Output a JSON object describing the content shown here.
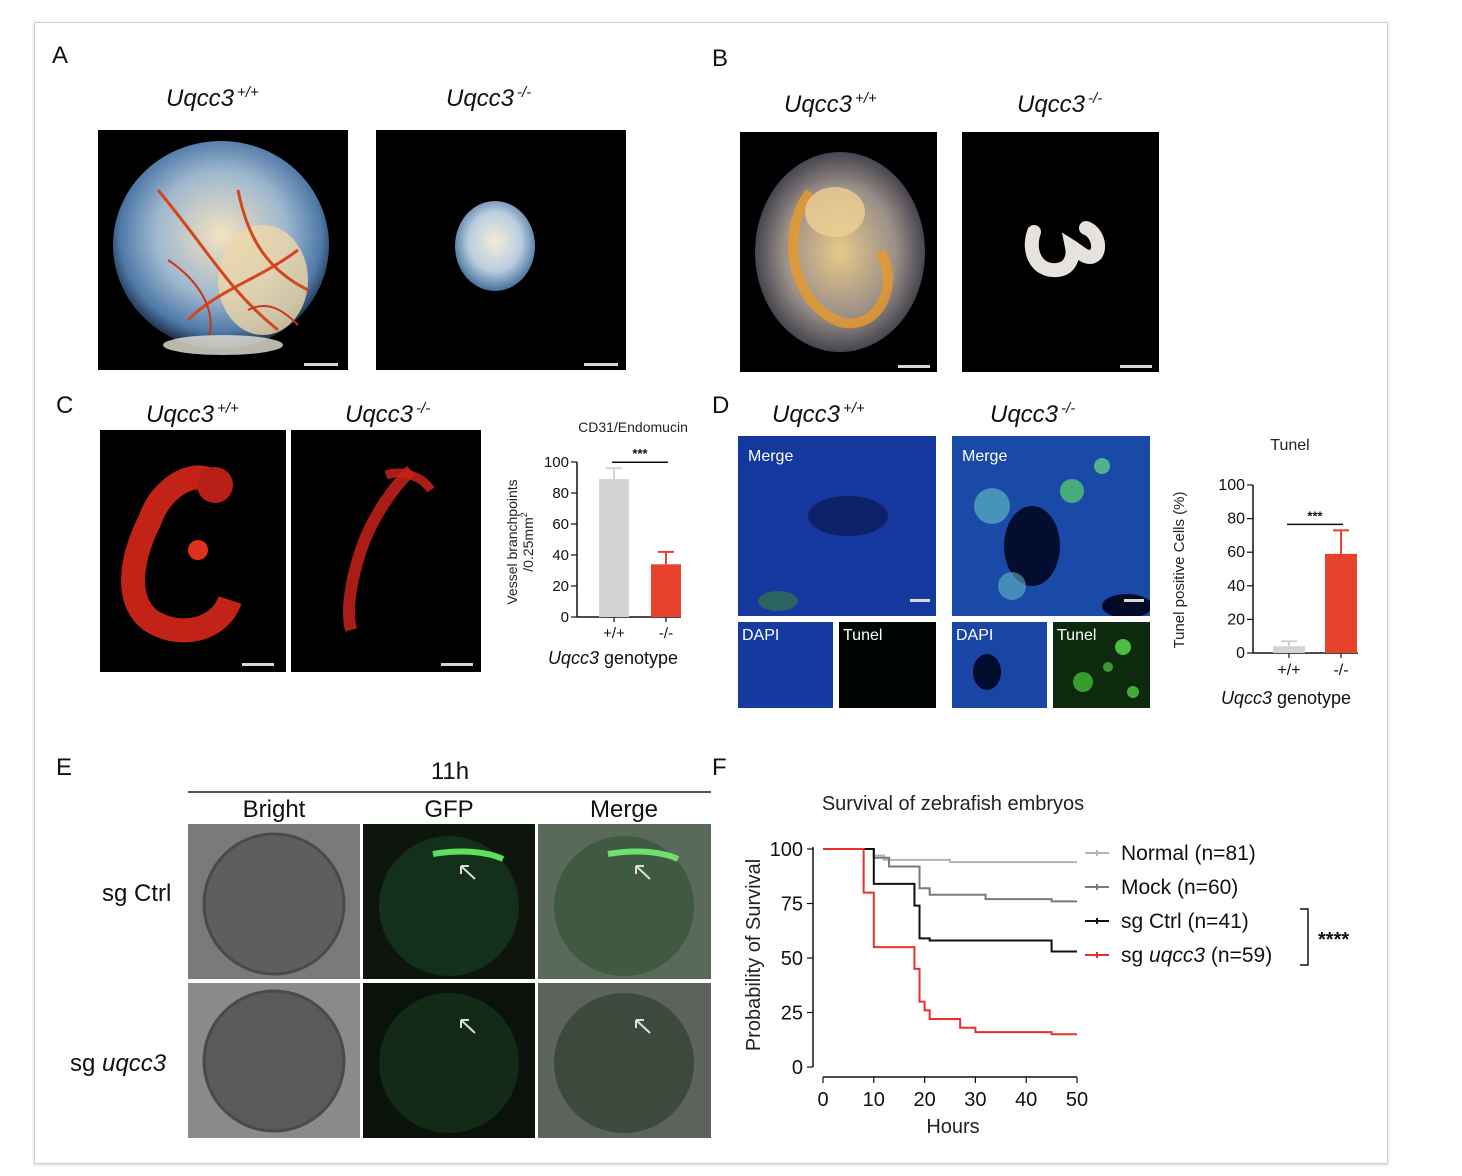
{
  "panels": {
    "A": {
      "label": "A",
      "wt": "Uqcc3",
      "wt_sup": "+/+",
      "ko": "Uqcc3",
      "ko_sup": "-/-"
    },
    "B": {
      "label": "B",
      "wt": "Uqcc3",
      "wt_sup": "+/+",
      "ko": "Uqcc3",
      "ko_sup": "-/-"
    },
    "C": {
      "label": "C",
      "wt": "Uqcc3",
      "wt_sup": "+/+",
      "ko": "Uqcc3",
      "ko_sup": "-/-"
    },
    "D": {
      "label": "D",
      "wt": "Uqcc3",
      "wt_sup": "+/+",
      "ko": "Uqcc3",
      "ko_sup": "-/-",
      "merge": "Merge",
      "dapi": "DAPI",
      "tunel": "Tunel"
    },
    "E": {
      "label": "E",
      "time": "11h",
      "col_bright": "Bright",
      "col_gfp": "GFP",
      "col_merge": "Merge",
      "row1": "sg Ctrl",
      "row2_prefix": "sg ",
      "row2_italic": "uqcc3"
    },
    "F": {
      "label": "F"
    }
  },
  "chart_data": [
    {
      "type": "bar",
      "title": "CD31/Endomucin",
      "ylabel": "Vessel branchpoints",
      "ylabel2": "/0.25mm",
      "ylabel2_sup": "2",
      "xlabel_italic": "Uqcc3",
      "xlabel": " genotype",
      "categories": [
        "+/+",
        "-/-"
      ],
      "values": [
        89,
        34
      ],
      "errors": [
        7,
        8
      ],
      "colors": [
        "#d3d3d3",
        "#e8412c"
      ],
      "ylim": [
        0,
        100
      ],
      "yticks": [
        0,
        20,
        40,
        60,
        80,
        100
      ],
      "significance": "***"
    },
    {
      "type": "bar",
      "title": "Tunel",
      "ylabel": "Tunel positive Cells (%)",
      "xlabel_italic": "Uqcc3",
      "xlabel": " genotype",
      "categories": [
        "+/+",
        "-/-"
      ],
      "values": [
        4,
        59
      ],
      "errors": [
        3,
        14
      ],
      "colors": [
        "#d3d3d3",
        "#e8412c"
      ],
      "ylim": [
        0,
        100
      ],
      "yticks": [
        0,
        20,
        40,
        60,
        80,
        100
      ],
      "significance": "***"
    },
    {
      "type": "line",
      "title": "Survival of zebrafish embryos",
      "xlabel": "Hours",
      "ylabel": "Probability of Survival",
      "xlim": [
        0,
        50
      ],
      "ylim": [
        0,
        100
      ],
      "xticks": [
        0,
        10,
        20,
        30,
        40,
        50
      ],
      "yticks": [
        0,
        25,
        50,
        75,
        100
      ],
      "significance": "****",
      "series": [
        {
          "name": "Normal (n=81)",
          "color": "#b5b5b5",
          "steps": [
            [
              0,
              100
            ],
            [
              10,
              97
            ],
            [
              12,
              95
            ],
            [
              25,
              94
            ],
            [
              50,
              94
            ]
          ]
        },
        {
          "name": "Mock (n=60)",
          "color": "#7a7a7a",
          "steps": [
            [
              0,
              100
            ],
            [
              10,
              96
            ],
            [
              13,
              92
            ],
            [
              19,
              82
            ],
            [
              21,
              79
            ],
            [
              32,
              77
            ],
            [
              45,
              76
            ],
            [
              50,
              76
            ]
          ]
        },
        {
          "name": "sg Ctrl (n=41)",
          "color": "#111111",
          "steps": [
            [
              0,
              100
            ],
            [
              10,
              84
            ],
            [
              18,
              74
            ],
            [
              19,
              59
            ],
            [
              21,
              58
            ],
            [
              45,
              53
            ],
            [
              50,
              53
            ]
          ]
        },
        {
          "name": "sg uqcc3 (n=59)",
          "name_prefix": "sg ",
          "name_italic": "uqcc3",
          "name_suffix": " (n=59)",
          "color": "#e8312c",
          "steps": [
            [
              0,
              100
            ],
            [
              8,
              80
            ],
            [
              10,
              55
            ],
            [
              18,
              45
            ],
            [
              19,
              30
            ],
            [
              20,
              26
            ],
            [
              21,
              22
            ],
            [
              27,
              18
            ],
            [
              30,
              16
            ],
            [
              45,
              15
            ],
            [
              50,
              15
            ]
          ]
        }
      ]
    }
  ]
}
